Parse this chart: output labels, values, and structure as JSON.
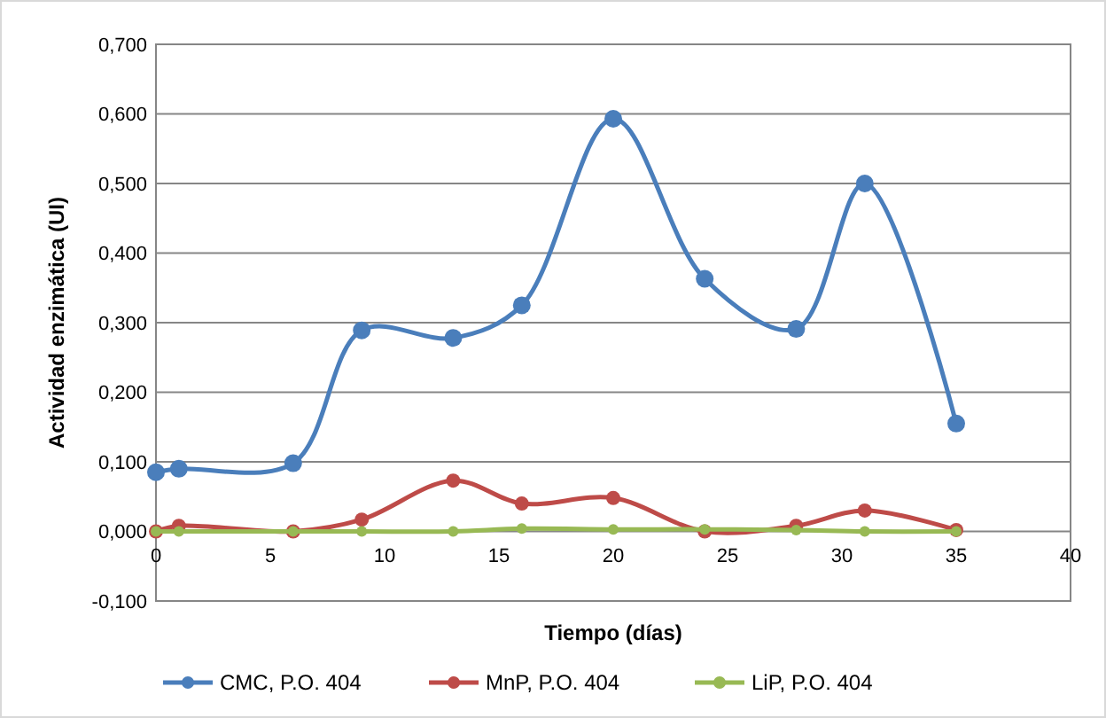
{
  "chart_data": {
    "type": "line",
    "xlabel": "Tiempo (días)",
    "ylabel": "Actividad enzimática (UI)",
    "x": [
      0,
      1,
      6,
      9,
      13,
      16,
      20,
      24,
      28,
      31,
      35
    ],
    "series": [
      {
        "name": "CMC, P.O. 404",
        "color": "#4a7ebb",
        "values": [
          0.085,
          0.09,
          0.098,
          0.289,
          0.278,
          0.325,
          0.593,
          0.363,
          0.291,
          0.5,
          0.155
        ]
      },
      {
        "name": "MnP, P.O. 404",
        "color": "#be4b48",
        "values": [
          0,
          0.008,
          0,
          0.017,
          0.073,
          0.04,
          0.048,
          0,
          0.008,
          0.03,
          0.002
        ]
      },
      {
        "name": "LiP, P.O. 404",
        "color": "#98b954",
        "values": [
          0,
          0,
          0,
          0,
          0,
          0.004,
          0.003,
          0.003,
          0.002,
          0,
          0
        ]
      }
    ],
    "xlim": [
      0,
      40
    ],
    "xticks": [
      0,
      5,
      10,
      15,
      20,
      25,
      30,
      35,
      40
    ],
    "ylim": [
      -0.1,
      0.7
    ],
    "yticks": [
      {
        "value": -0.1,
        "label": "-0,100"
      },
      {
        "value": 0,
        "label": "0,000"
      },
      {
        "value": 0.1,
        "label": "0,100"
      },
      {
        "value": 0.2,
        "label": "0,200"
      },
      {
        "value": 0.3,
        "label": "0,300"
      },
      {
        "value": 0.4,
        "label": "0,400"
      },
      {
        "value": 0.5,
        "label": "0,500"
      },
      {
        "value": 0.6,
        "label": "0,600"
      },
      {
        "value": 0.7,
        "label": "0,700"
      }
    ],
    "grid": "y",
    "legend": "bottom",
    "marker": "circle",
    "line_style": "solid"
  }
}
